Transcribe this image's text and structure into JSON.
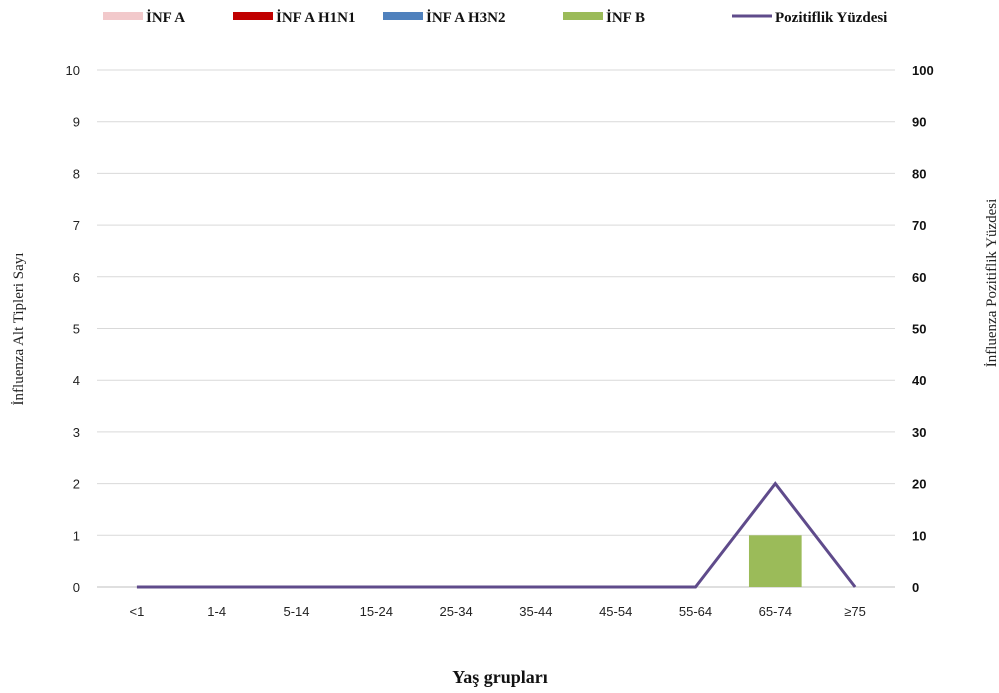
{
  "chart_data": {
    "type": "bar",
    "categories": [
      "<1",
      "1-4",
      "5-14",
      "15-24",
      "25-34",
      "35-44",
      "45-54",
      "55-64",
      "65-74",
      "≥75"
    ],
    "series": [
      {
        "name": "İNF A",
        "type": "bar",
        "color": "#f2c9cb",
        "values": [
          0,
          0,
          0,
          0,
          0,
          0,
          0,
          0,
          0,
          0
        ]
      },
      {
        "name": "İNF A H1N1",
        "type": "bar",
        "color": "#c00000",
        "values": [
          0,
          0,
          0,
          0,
          0,
          0,
          0,
          0,
          0,
          0
        ]
      },
      {
        "name": "İNF A H3N2",
        "type": "bar",
        "color": "#4f81bd",
        "values": [
          0,
          0,
          0,
          0,
          0,
          0,
          0,
          0,
          0,
          0
        ]
      },
      {
        "name": "İNF B",
        "type": "bar",
        "color": "#9bbb59",
        "values": [
          0,
          0,
          0,
          0,
          0,
          0,
          0,
          0,
          1,
          0
        ]
      },
      {
        "name": "Pozitiflik Yüzdesi",
        "type": "line",
        "axis": "right",
        "color": "#5f4b8b",
        "values": [
          0,
          0,
          0,
          0,
          0,
          0,
          0,
          0,
          20,
          0
        ]
      }
    ],
    "xlabel": "Yaş grupları",
    "ylabel": "İnfluenza Alt Tipleri Sayı",
    "y2label": "İnfluenza  Pozitiflik  Yüzdesi",
    "ylim": [
      0,
      10
    ],
    "y2lim": [
      0,
      100
    ],
    "yticks": [
      "0",
      "1",
      "2",
      "3",
      "4",
      "5",
      "6",
      "7",
      "8",
      "9",
      "10"
    ],
    "y2ticks": [
      "0",
      "10",
      "20",
      "30",
      "40",
      "50",
      "60",
      "70",
      "80",
      "90",
      "100"
    ],
    "grid": true,
    "legend_position": "top"
  }
}
